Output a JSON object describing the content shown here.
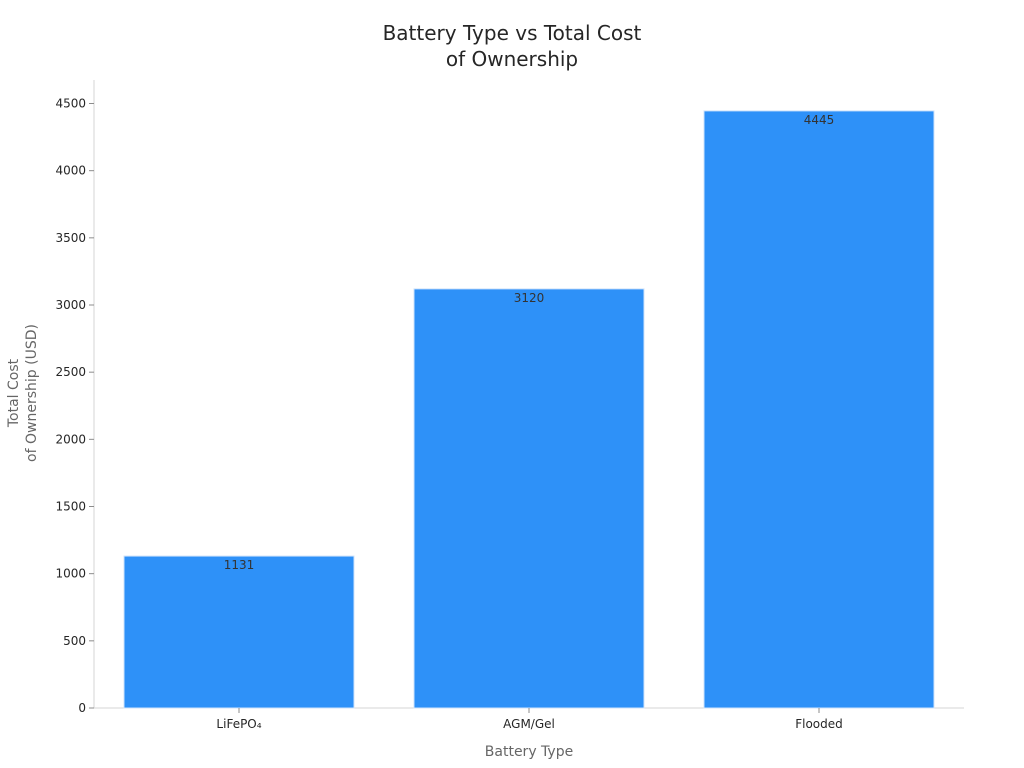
{
  "chart_data": {
    "type": "bar",
    "title_lines": [
      "Battery Type vs Total Cost",
      "of Ownership"
    ],
    "xlabel": "Battery Type",
    "ylabel_lines": [
      "Total Cost",
      "of Ownership (USD)"
    ],
    "categories": [
      "LiFePO₄",
      "AGM/Gel",
      "Flooded"
    ],
    "values": [
      1131,
      3120,
      4445
    ],
    "data_labels": [
      "1131",
      "3120",
      "4445"
    ],
    "ylim": [
      0,
      4675
    ],
    "yticks": [
      0,
      500,
      1000,
      1500,
      2000,
      2500,
      3000,
      3500,
      4000,
      4500
    ],
    "grid": false,
    "legend": "none",
    "colors": {
      "bar": "#2e91f8",
      "bar_edge": "#cfe3fb",
      "title": "#262626",
      "axis_title": "#666666",
      "tick_label": "#262626",
      "axis_line": "#d6d6d6"
    }
  }
}
